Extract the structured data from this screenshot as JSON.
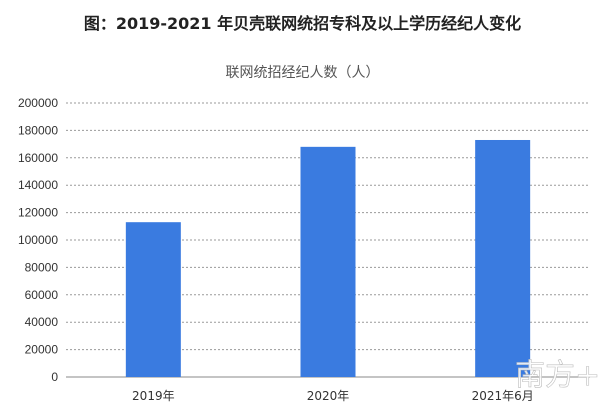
{
  "figure_title": "图：2019-2021 年贝壳联网统招专科及以上学历经纪人变化",
  "watermark": "南方+",
  "colors": {
    "bar": "#3a7be0",
    "grid": "#9a9a9a",
    "axis": "#888888"
  },
  "chart_data": {
    "type": "bar",
    "title": "联网统招经纪人数（人）",
    "categories": [
      "2019年",
      "2020年",
      "2021年6月"
    ],
    "values": [
      113000,
      168000,
      173000
    ],
    "ylim": [
      0,
      200000
    ],
    "yticks": [
      0,
      20000,
      40000,
      60000,
      80000,
      100000,
      120000,
      140000,
      160000,
      180000,
      200000
    ],
    "grid": true,
    "xlabel": "",
    "ylabel": ""
  }
}
